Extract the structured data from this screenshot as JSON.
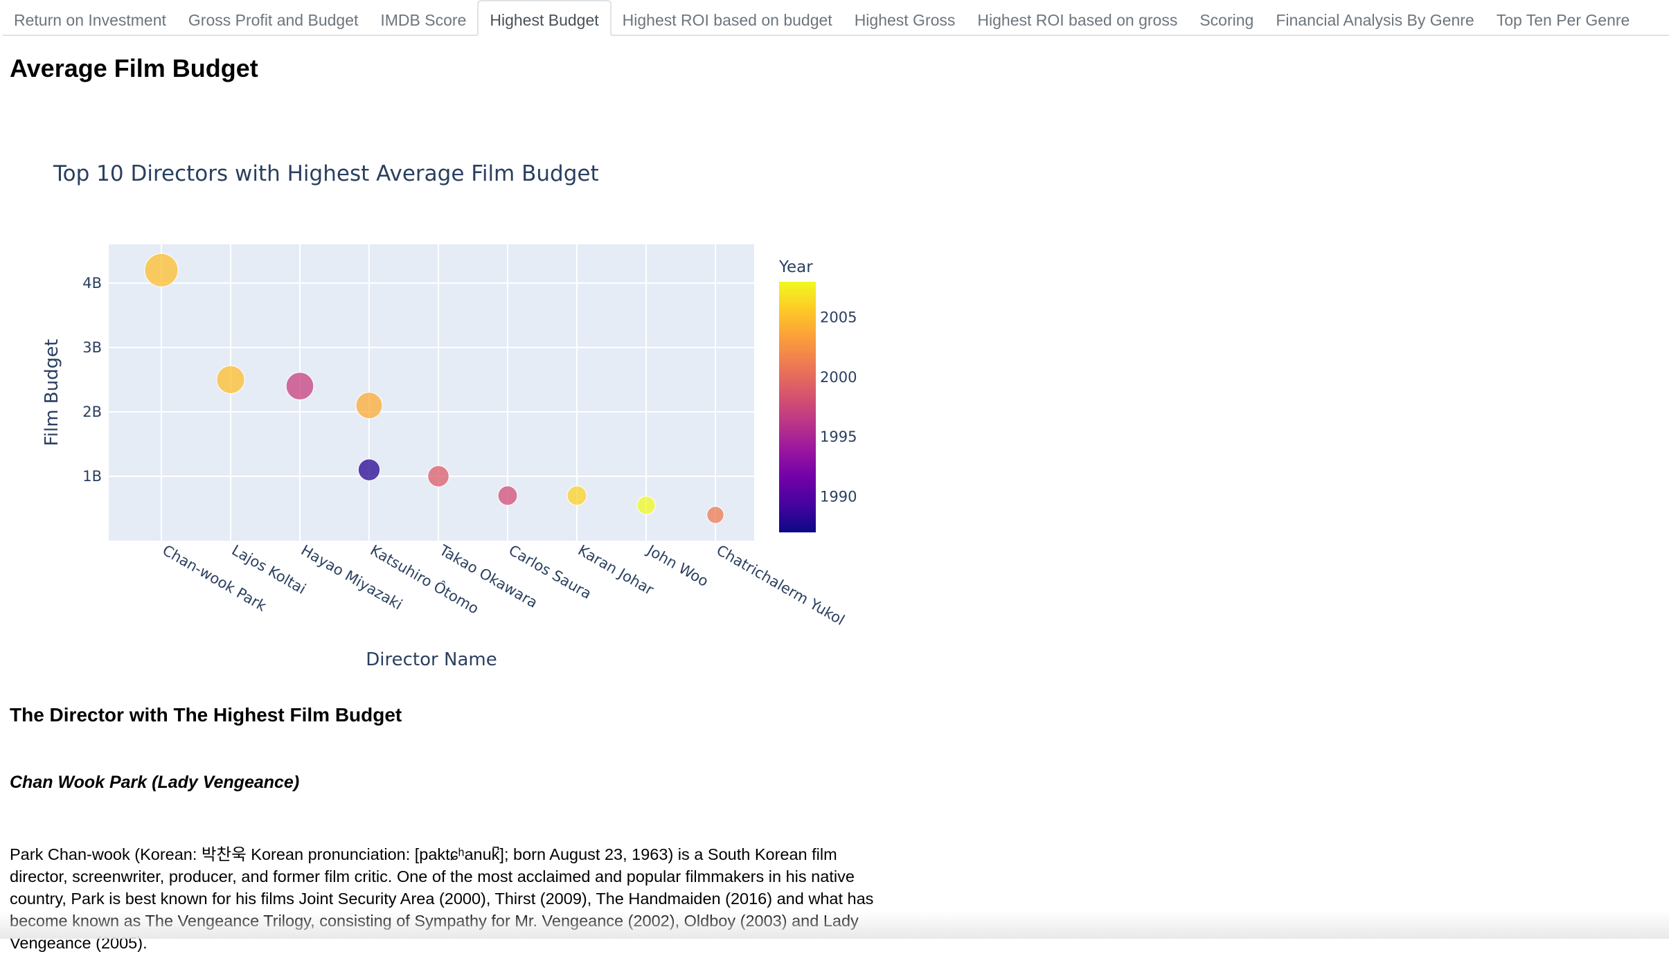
{
  "tabs": [
    "Return on Investment",
    "Gross Profit and Budget",
    "IMDB Score",
    "Highest Budget",
    "Highest ROI based on budget",
    "Highest Gross",
    "Highest ROI based on gross",
    "Scoring",
    "Financial Analysis By Genre",
    "Top Ten Per Genre"
  ],
  "active_tab": "Highest Budget",
  "section_title": "Average Film Budget",
  "chart_data": {
    "type": "scatter",
    "title": "Top 10 Directors with Highest Average Film Budget",
    "xlabel": "Director Name",
    "ylabel": "Film Budget",
    "categories": [
      "Chan-wook Park",
      "Lajos Koltai",
      "Hayao Miyazaki",
      "Katsuhiro Ôtomo",
      "Katsuhiro Ôtomo",
      "Takao Okawara",
      "Carlos Saura",
      "Karan Johar",
      "John Woo",
      "Chatrichalerm Yukol"
    ],
    "x_ticks": [
      "Chan-wook Park",
      "Lajos Koltai",
      "Hayao Miyazaki",
      "Katsuhiro Ôtomo",
      "Takao Okawara",
      "Carlos Saura",
      "Karan Johar",
      "John Woo",
      "Chatrichalerm Yukol"
    ],
    "values": [
      4.2,
      2.5,
      2.4,
      2.1,
      1.1,
      1.0,
      0.7,
      0.7,
      0.55,
      0.4
    ],
    "year": [
      2005,
      2005,
      1997,
      2004,
      1988,
      1999,
      1998,
      2006,
      2008,
      2001
    ],
    "y_unit": "B",
    "y_ticks": [
      1,
      2,
      3,
      4
    ],
    "ylim": [
      0,
      4.6
    ],
    "colorbar": {
      "title": "Year",
      "ticks": [
        1990,
        1995,
        2000,
        2005
      ],
      "range": [
        1987,
        2008
      ]
    },
    "grid": true,
    "legend": "colorbar-right"
  },
  "director_heading": "The Director with The Highest Film Budget",
  "director_film": "Chan Wook Park (Lady Vengeance)",
  "bio": "Park Chan-wook (Korean: 박찬욱 Korean pronunciation: [paktɕʰanuk̚]; born August 23, 1963) is a South Korean film director, screenwriter, producer, and former film critic. One of the most acclaimed and popular filmmakers in his native country, Park is best known for his films Joint Security Area (2000), Thirst (2009), The Handmaiden (2016) and what has become known as The Vengeance Trilogy, consisting of Sympathy for Mr. Vengeance (2002), Oldboy (2003) and Lady Vengeance (2005)."
}
